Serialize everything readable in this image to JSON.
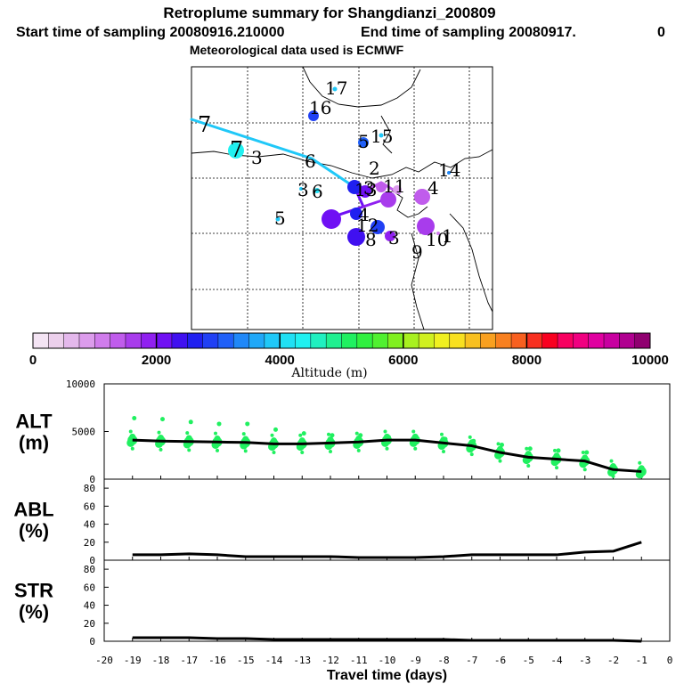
{
  "header": {
    "title": "Retroplume summary for Shangdianzi_200809",
    "start_label": "Start time of sampling 20080916.210000",
    "end_label": "End time of sampling 20080917.",
    "end_suffix": "0",
    "met_label": "Meteorological data used is ECMWF"
  },
  "colorbar": {
    "label": "Altitude (m)",
    "ticks": [
      "0",
      "2000",
      "4000",
      "6000",
      "8000",
      "10000"
    ],
    "colors": [
      "#f4e4f4",
      "#ecd0ec",
      "#e4b8ec",
      "#dc9cec",
      "#d07cec",
      "#c05cec",
      "#a83cec",
      "#9020f0",
      "#7010f4",
      "#4010f0",
      "#2020f0",
      "#2040f4",
      "#2060f8",
      "#2088f8",
      "#20a8f8",
      "#20c8f8",
      "#20e0f4",
      "#20f0f0",
      "#20f0c0",
      "#20f090",
      "#20f060",
      "#30f040",
      "#50f030",
      "#80f020",
      "#a8f020",
      "#d0f020",
      "#f0f020",
      "#f8e020",
      "#f8c020",
      "#f8a020",
      "#f88020",
      "#f86020",
      "#f83020",
      "#f80020",
      "#f80060",
      "#f00080",
      "#e000a0",
      "#c800a0",
      "#b00090",
      "#900070"
    ]
  },
  "map": {
    "trajectory_labels": [
      "7",
      "6",
      "5",
      "4",
      "3",
      "2",
      "1",
      "17",
      "16",
      "15",
      "14",
      "13",
      "12",
      "11",
      "10",
      "9",
      "8"
    ]
  },
  "chart_data": [
    {
      "type": "line",
      "title": "ALT",
      "ylabel": "(m)",
      "ylim": [
        0,
        10000
      ],
      "y_ticks": [
        "0",
        "5000",
        "10000"
      ],
      "x": [
        -19,
        -18,
        -17,
        -16,
        -15,
        -14,
        -13,
        -12,
        -11,
        -10,
        -9,
        -8,
        -7,
        -6,
        -5,
        -4,
        -3,
        -2,
        -1
      ],
      "series": [
        {
          "name": "mean altitude",
          "values": [
            4100,
            4000,
            3950,
            3900,
            3850,
            3700,
            3700,
            3800,
            3900,
            4100,
            4100,
            3800,
            3500,
            2800,
            2300,
            2100,
            1900,
            1000,
            800
          ]
        },
        {
          "name": "plume clusters",
          "values": [
            6400,
            6300,
            6000,
            5800,
            5800,
            5200,
            4800,
            4600,
            4600,
            4400,
            4300,
            4200,
            4000,
            3600,
            3200,
            3000,
            2800,
            1200,
            800
          ]
        }
      ]
    },
    {
      "type": "line",
      "title": "ABL",
      "ylabel": "(%)",
      "ylim": [
        0,
        90
      ],
      "y_ticks": [
        "0",
        "20",
        "40",
        "60",
        "80"
      ],
      "x": [
        -19,
        -18,
        -17,
        -16,
        -15,
        -14,
        -13,
        -12,
        -11,
        -10,
        -9,
        -8,
        -7,
        -6,
        -5,
        -4,
        -3,
        -2,
        -1
      ],
      "series": [
        {
          "name": "ABL fraction",
          "values": [
            6,
            6,
            7,
            6,
            4,
            4,
            4,
            4,
            3,
            3,
            3,
            4,
            6,
            6,
            6,
            6,
            9,
            10,
            20
          ]
        }
      ]
    },
    {
      "type": "line",
      "title": "STR",
      "ylabel": "(%)",
      "xlabel": "Travel time (days)",
      "ylim": [
        0,
        90
      ],
      "y_ticks": [
        "0",
        "20",
        "40",
        "60",
        "80"
      ],
      "x_ticks": [
        "-20",
        "-19",
        "-18",
        "-17",
        "-16",
        "-15",
        "-14",
        "-13",
        "-12",
        "-11",
        "-10",
        "-9",
        "-8",
        "-7",
        "-6",
        "-5",
        "-4",
        "-3",
        "-2",
        "-1",
        "0"
      ],
      "x": [
        -19,
        -18,
        -17,
        -16,
        -15,
        -14,
        -13,
        -12,
        -11,
        -10,
        -9,
        -8,
        -7,
        -6,
        -5,
        -4,
        -3,
        -2,
        -1
      ],
      "series": [
        {
          "name": "STR fraction",
          "values": [
            4,
            4,
            4,
            3,
            3,
            2,
            2,
            2,
            2,
            2,
            2,
            2,
            1,
            1,
            1,
            1,
            1,
            1,
            0
          ]
        }
      ]
    }
  ]
}
